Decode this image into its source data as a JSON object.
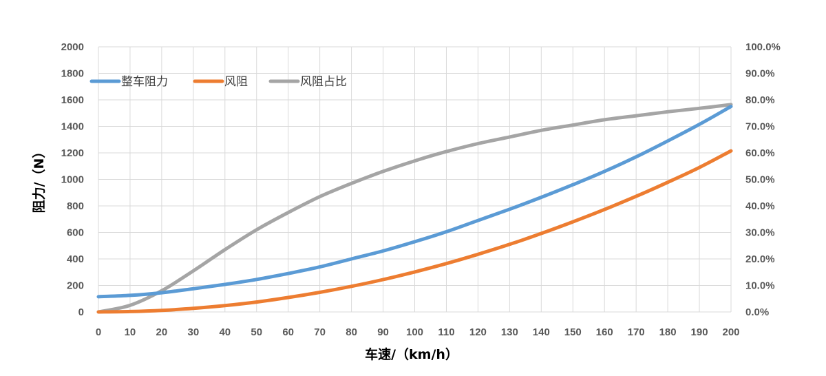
{
  "chart_data": {
    "type": "line",
    "title": "",
    "xlabel": "车速/（km/h）",
    "ylabel": "阻力/（N）",
    "y2label": "",
    "xlim": [
      0,
      200
    ],
    "ylim": [
      0,
      2000
    ],
    "y2lim": [
      0,
      100
    ],
    "x_ticks": [
      0,
      10,
      20,
      30,
      40,
      50,
      60,
      70,
      80,
      90,
      100,
      110,
      120,
      130,
      140,
      150,
      160,
      170,
      180,
      190,
      200
    ],
    "y_ticks": [
      0,
      200,
      400,
      600,
      800,
      1000,
      1200,
      1400,
      1600,
      1800,
      2000
    ],
    "y2_ticks": [
      "0.0%",
      "10.0%",
      "20.0%",
      "30.0%",
      "40.0%",
      "50.0%",
      "60.0%",
      "70.0%",
      "80.0%",
      "90.0%",
      "100.0%"
    ],
    "grid": true,
    "legend_position": "top-left",
    "x": [
      0,
      10,
      20,
      30,
      40,
      50,
      60,
      70,
      80,
      90,
      100,
      110,
      120,
      130,
      140,
      150,
      160,
      170,
      180,
      190,
      200
    ],
    "series": [
      {
        "name": "整车阻力",
        "axis": "left",
        "color": "#5B9BD5",
        "values": [
          115,
          125,
          145,
          175,
          208,
          245,
          290,
          340,
          400,
          460,
          530,
          605,
          690,
          775,
          865,
          960,
          1060,
          1170,
          1290,
          1415,
          1550
        ]
      },
      {
        "name": "风阻",
        "axis": "left",
        "color": "#ED7D31",
        "values": [
          0,
          3,
          12,
          27,
          48,
          75,
          109,
          148,
          193,
          244,
          302,
          365,
          435,
          510,
          592,
          680,
          773,
          872,
          978,
          1090,
          1215
        ]
      },
      {
        "name": "风阻占比",
        "axis": "right",
        "color": "#A5A5A5",
        "values": [
          0,
          2.5,
          8,
          15.5,
          23.5,
          31,
          37.5,
          43.5,
          48.5,
          53,
          57,
          60.5,
          63.5,
          66,
          68.5,
          70.5,
          72.5,
          74,
          75.5,
          76.8,
          78.2
        ]
      }
    ]
  }
}
